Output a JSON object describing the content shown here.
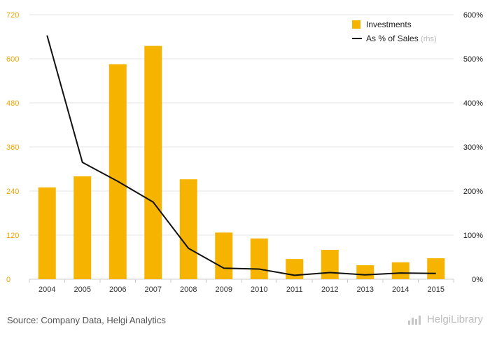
{
  "chart_data": {
    "type": "bar+line",
    "categories": [
      "2004",
      "2005",
      "2006",
      "2007",
      "2008",
      "2009",
      "2010",
      "2011",
      "2012",
      "2013",
      "2014",
      "2015"
    ],
    "series": [
      {
        "name": "Investments",
        "type": "bar",
        "axis": "left",
        "color": "#f6b400",
        "values": [
          250,
          280,
          585,
          635,
          272,
          127,
          111,
          55,
          80,
          38,
          46,
          57
        ]
      },
      {
        "name": "As % of Sales",
        "type": "line",
        "axis": "right",
        "color": "#111111",
        "values": [
          553,
          265,
          222,
          175,
          70,
          25,
          23,
          9,
          15,
          10,
          14,
          13
        ]
      }
    ],
    "left_axis": {
      "min": 0,
      "max": 720,
      "ticks": [
        "0",
        "120",
        "240",
        "360",
        "480",
        "600",
        "720"
      ]
    },
    "right_axis": {
      "min": 0,
      "max": 600,
      "ticks": [
        "0%",
        "100%",
        "200%",
        "300%",
        "400%",
        "500%",
        "600%"
      ]
    },
    "legend": {
      "position": "top-right",
      "items": [
        {
          "label": "Investments",
          "sub": ""
        },
        {
          "label": "As % of Sales",
          "sub": "(rhs)"
        }
      ]
    },
    "grid": true
  },
  "footer": {
    "source": "Source: Company Data, Helgi Analytics"
  },
  "logo": {
    "text": "HelgiLibrary"
  }
}
